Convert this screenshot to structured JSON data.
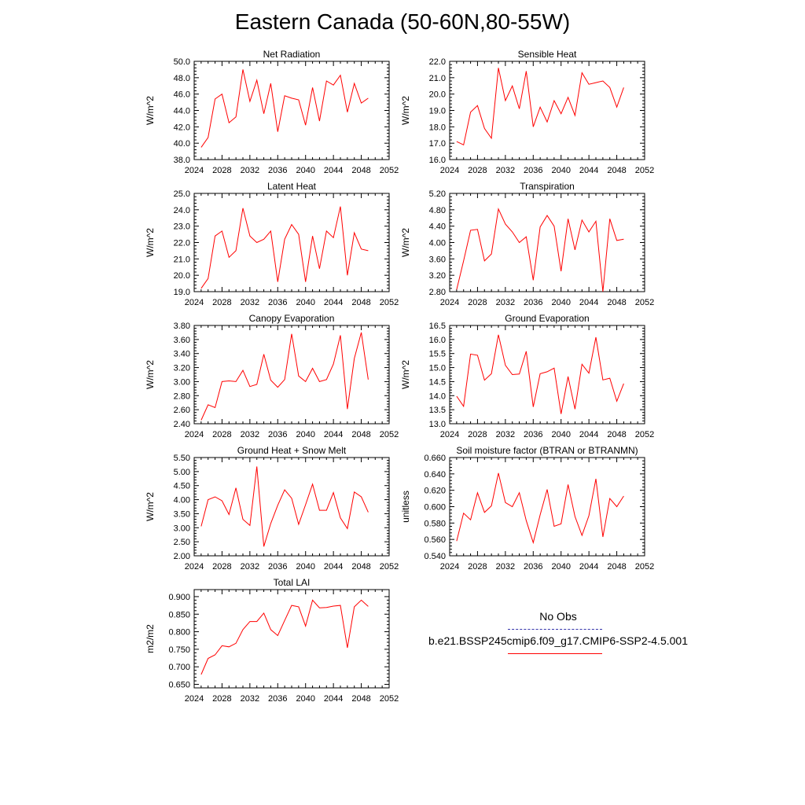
{
  "figure": {
    "title": "Eastern Canada (50-60N,80-55W)"
  },
  "legend": {
    "entries": [
      {
        "label": "No Obs",
        "color": "#3333aa",
        "style": "dashed"
      },
      {
        "label": "b.e21.BSSP245cmip6.f09_g17.CMIP6-SSP2-4.5.001",
        "color": "#ff0000",
        "style": "solid"
      }
    ]
  },
  "chart_data": [
    {
      "type": "line",
      "title": "Net Radiation",
      "ylabel": "W/m^2",
      "xlim": [
        2024,
        2052
      ],
      "ylim": [
        38.0,
        50.0
      ],
      "xticks": [
        2024,
        2028,
        2032,
        2036,
        2040,
        2044,
        2048,
        2052
      ],
      "yticks": [
        "38.0",
        "40.0",
        "42.0",
        "44.0",
        "46.0",
        "48.0",
        "50.0"
      ],
      "x": [
        2025,
        2026,
        2027,
        2028,
        2029,
        2030,
        2031,
        2032,
        2033,
        2034,
        2035,
        2036,
        2037,
        2038,
        2039,
        2040,
        2041,
        2042,
        2043,
        2044,
        2045,
        2046,
        2047,
        2048,
        2049
      ],
      "series": [
        {
          "color": "#ff0000",
          "values": [
            39.5,
            40.7,
            45.4,
            46.0,
            42.5,
            43.2,
            49.0,
            45.1,
            47.7,
            43.6,
            47.3,
            41.4,
            45.8,
            45.5,
            45.3,
            42.2,
            46.8,
            42.7,
            47.6,
            47.1,
            48.3,
            43.8,
            47.3,
            44.9,
            45.5
          ]
        }
      ]
    },
    {
      "type": "line",
      "title": "Sensible Heat",
      "ylabel": "W/m^2",
      "xlim": [
        2024,
        2052
      ],
      "ylim": [
        16.0,
        22.0
      ],
      "xticks": [
        2024,
        2028,
        2032,
        2036,
        2040,
        2044,
        2048,
        2052
      ],
      "yticks": [
        "16.0",
        "17.0",
        "18.0",
        "19.0",
        "20.0",
        "21.0",
        "22.0"
      ],
      "x": [
        2025,
        2026,
        2027,
        2028,
        2029,
        2030,
        2031,
        2032,
        2033,
        2034,
        2035,
        2036,
        2037,
        2038,
        2039,
        2040,
        2041,
        2042,
        2043,
        2044,
        2045,
        2046,
        2047,
        2048,
        2049
      ],
      "series": [
        {
          "color": "#ff0000",
          "values": [
            17.1,
            16.9,
            18.9,
            19.3,
            17.9,
            17.3,
            21.6,
            19.6,
            20.5,
            19.1,
            21.4,
            18.0,
            19.2,
            18.3,
            19.6,
            18.8,
            19.8,
            18.7,
            21.3,
            20.6,
            20.7,
            20.8,
            20.4,
            19.2,
            20.4
          ]
        }
      ]
    },
    {
      "type": "line",
      "title": "Latent Heat",
      "ylabel": "W/m^2",
      "xlim": [
        2024,
        2052
      ],
      "ylim": [
        19.0,
        25.0
      ],
      "xticks": [
        2024,
        2028,
        2032,
        2036,
        2040,
        2044,
        2048,
        2052
      ],
      "yticks": [
        "19.0",
        "20.0",
        "21.0",
        "22.0",
        "23.0",
        "24.0",
        "25.0"
      ],
      "x": [
        2025,
        2026,
        2027,
        2028,
        2029,
        2030,
        2031,
        2032,
        2033,
        2034,
        2035,
        2036,
        2037,
        2038,
        2039,
        2040,
        2041,
        2042,
        2043,
        2044,
        2045,
        2046,
        2047,
        2048,
        2049
      ],
      "series": [
        {
          "color": "#ff0000",
          "values": [
            19.2,
            19.8,
            22.4,
            22.7,
            21.1,
            21.5,
            24.1,
            22.4,
            22.0,
            22.2,
            22.7,
            19.6,
            22.2,
            23.1,
            22.5,
            19.6,
            22.4,
            20.4,
            22.7,
            22.3,
            24.2,
            20.0,
            22.6,
            21.6,
            21.5
          ]
        }
      ]
    },
    {
      "type": "line",
      "title": "Transpiration",
      "ylabel": "W/m^2",
      "xlim": [
        2024,
        2052
      ],
      "ylim": [
        2.8,
        5.2
      ],
      "xticks": [
        2024,
        2028,
        2032,
        2036,
        2040,
        2044,
        2048,
        2052
      ],
      "yticks": [
        "2.80",
        "3.20",
        "3.60",
        "4.00",
        "4.40",
        "4.80",
        "5.20"
      ],
      "x": [
        2025,
        2026,
        2027,
        2028,
        2029,
        2030,
        2031,
        2032,
        2033,
        2034,
        2035,
        2036,
        2037,
        2038,
        2039,
        2040,
        2041,
        2042,
        2043,
        2044,
        2045,
        2046,
        2047,
        2048,
        2049
      ],
      "series": [
        {
          "color": "#ff0000",
          "values": [
            2.85,
            3.55,
            4.3,
            4.32,
            3.55,
            3.72,
            4.82,
            4.45,
            4.26,
            4.0,
            4.14,
            3.08,
            4.38,
            4.66,
            4.4,
            3.3,
            4.58,
            3.82,
            4.55,
            4.26,
            4.52,
            2.8,
            4.58,
            4.05,
            4.08
          ]
        }
      ]
    },
    {
      "type": "line",
      "title": "Canopy Evaporation",
      "ylabel": "W/m^2",
      "xlim": [
        2024,
        2052
      ],
      "ylim": [
        2.4,
        3.8
      ],
      "xticks": [
        2024,
        2028,
        2032,
        2036,
        2040,
        2044,
        2048,
        2052
      ],
      "yticks": [
        "2.40",
        "2.60",
        "2.80",
        "3.00",
        "3.20",
        "3.40",
        "3.60",
        "3.80"
      ],
      "x": [
        2025,
        2026,
        2027,
        2028,
        2029,
        2030,
        2031,
        2032,
        2033,
        2034,
        2035,
        2036,
        2037,
        2038,
        2039,
        2040,
        2041,
        2042,
        2043,
        2044,
        2045,
        2046,
        2047,
        2048,
        2049
      ],
      "series": [
        {
          "color": "#ff0000",
          "values": [
            2.45,
            2.67,
            2.63,
            3.0,
            3.01,
            3.0,
            3.16,
            2.93,
            2.96,
            3.39,
            3.02,
            2.92,
            3.03,
            3.68,
            3.08,
            3.0,
            3.19,
            3.0,
            3.03,
            3.25,
            3.66,
            2.61,
            3.33,
            3.7,
            3.03
          ]
        }
      ]
    },
    {
      "type": "line",
      "title": "Ground Evaporation",
      "ylabel": "W/m^2",
      "xlim": [
        2024,
        2052
      ],
      "ylim": [
        13.0,
        16.5
      ],
      "xticks": [
        2024,
        2028,
        2032,
        2036,
        2040,
        2044,
        2048,
        2052
      ],
      "yticks": [
        "13.0",
        "13.5",
        "14.0",
        "14.5",
        "15.0",
        "15.5",
        "16.0",
        "16.5"
      ],
      "x": [
        2025,
        2026,
        2027,
        2028,
        2029,
        2030,
        2031,
        2032,
        2033,
        2034,
        2035,
        2036,
        2037,
        2038,
        2039,
        2040,
        2041,
        2042,
        2043,
        2044,
        2045,
        2046,
        2047,
        2048,
        2049
      ],
      "series": [
        {
          "color": "#ff0000",
          "values": [
            13.98,
            13.62,
            15.48,
            15.44,
            14.55,
            14.78,
            16.17,
            15.08,
            14.75,
            14.77,
            15.58,
            13.6,
            14.78,
            14.85,
            14.98,
            13.35,
            14.68,
            13.52,
            15.12,
            14.8,
            16.08,
            14.56,
            14.62,
            13.8,
            14.43
          ]
        }
      ]
    },
    {
      "type": "line",
      "title": "Ground Heat + Snow Melt",
      "ylabel": "W/m^2",
      "xlim": [
        2024,
        2052
      ],
      "ylim": [
        2.0,
        5.5
      ],
      "xticks": [
        2024,
        2028,
        2032,
        2036,
        2040,
        2044,
        2048,
        2052
      ],
      "yticks": [
        "2.00",
        "2.50",
        "3.00",
        "3.50",
        "4.00",
        "4.50",
        "5.00",
        "5.50"
      ],
      "x": [
        2025,
        2026,
        2027,
        2028,
        2029,
        2030,
        2031,
        2032,
        2033,
        2034,
        2035,
        2036,
        2037,
        2038,
        2039,
        2040,
        2041,
        2042,
        2043,
        2044,
        2045,
        2046,
        2047,
        2048,
        2049
      ],
      "series": [
        {
          "color": "#ff0000",
          "values": [
            3.05,
            4.0,
            4.1,
            3.96,
            3.47,
            4.42,
            3.3,
            3.08,
            5.18,
            2.33,
            3.15,
            3.8,
            4.35,
            4.05,
            3.12,
            3.82,
            4.55,
            3.62,
            3.62,
            4.25,
            3.35,
            2.97,
            4.27,
            4.1,
            3.55
          ]
        }
      ]
    },
    {
      "type": "line",
      "title": "Soil moisture factor (BTRAN or BTRANMN)",
      "ylabel": "unitless",
      "xlim": [
        2024,
        2052
      ],
      "ylim": [
        0.54,
        0.66
      ],
      "xticks": [
        2024,
        2028,
        2032,
        2036,
        2040,
        2044,
        2048,
        2052
      ],
      "yticks": [
        "0.540",
        "0.560",
        "0.580",
        "0.600",
        "0.620",
        "0.640",
        "0.660"
      ],
      "x": [
        2025,
        2026,
        2027,
        2028,
        2029,
        2030,
        2031,
        2032,
        2033,
        2034,
        2035,
        2036,
        2037,
        2038,
        2039,
        2040,
        2041,
        2042,
        2043,
        2044,
        2045,
        2046,
        2047,
        2048,
        2049
      ],
      "series": [
        {
          "color": "#ff0000",
          "values": [
            0.558,
            0.592,
            0.584,
            0.617,
            0.593,
            0.601,
            0.641,
            0.605,
            0.6,
            0.617,
            0.583,
            0.556,
            0.59,
            0.621,
            0.576,
            0.579,
            0.627,
            0.588,
            0.565,
            0.589,
            0.634,
            0.563,
            0.61,
            0.6,
            0.613
          ]
        }
      ]
    },
    {
      "type": "line",
      "title": "Total LAI",
      "ylabel": "m2/m2",
      "xlim": [
        2024,
        2052
      ],
      "ylim": [
        0.64,
        0.92
      ],
      "xticks": [
        2024,
        2028,
        2032,
        2036,
        2040,
        2044,
        2048,
        2052
      ],
      "yticks": [
        "0.650",
        "0.700",
        "0.750",
        "0.800",
        "0.850",
        "0.900"
      ],
      "ytick_values": [
        0.65,
        0.7,
        0.75,
        0.8,
        0.85,
        0.9
      ],
      "x": [
        2025,
        2026,
        2027,
        2028,
        2029,
        2030,
        2031,
        2032,
        2033,
        2034,
        2035,
        2036,
        2037,
        2038,
        2039,
        2040,
        2041,
        2042,
        2043,
        2044,
        2045,
        2046,
        2047,
        2048,
        2049
      ],
      "series": [
        {
          "color": "#ff0000",
          "values": [
            0.678,
            0.724,
            0.734,
            0.76,
            0.757,
            0.767,
            0.806,
            0.829,
            0.829,
            0.853,
            0.806,
            0.789,
            0.832,
            0.875,
            0.871,
            0.816,
            0.89,
            0.868,
            0.869,
            0.873,
            0.875,
            0.754,
            0.871,
            0.89,
            0.872
          ]
        }
      ]
    }
  ]
}
